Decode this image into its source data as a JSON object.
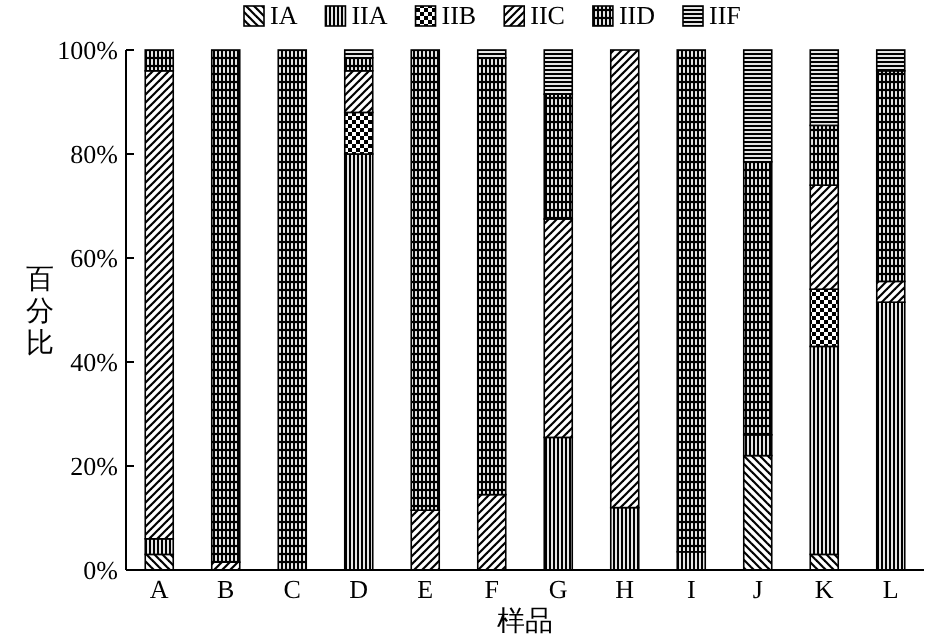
{
  "chart_data": {
    "type": "bar",
    "stacked": true,
    "xlabel": "样品",
    "ylabel": "百分比",
    "categories": [
      "A",
      "B",
      "C",
      "D",
      "E",
      "F",
      "G",
      "H",
      "I",
      "J",
      "K",
      "L"
    ],
    "series": [
      {
        "name": "IA",
        "color": "#000000",
        "values": [
          3,
          0,
          0,
          0,
          0,
          0,
          0,
          0,
          0,
          22,
          3,
          0
        ]
      },
      {
        "name": "IIA",
        "color": "#000000",
        "values": [
          3,
          0,
          0,
          80,
          0,
          0,
          25.5,
          12,
          3.5,
          4,
          40,
          51.5
        ]
      },
      {
        "name": "IIB",
        "color": "#000000",
        "values": [
          0,
          0,
          0,
          8,
          0,
          0,
          0,
          0,
          0,
          0,
          11,
          0
        ]
      },
      {
        "name": "IIC",
        "color": "#000000",
        "values": [
          90,
          1.5,
          0,
          8,
          11.5,
          14.5,
          42,
          88,
          0,
          0,
          20,
          4
        ]
      },
      {
        "name": "IID",
        "color": "#000000",
        "values": [
          4,
          98.5,
          100,
          2.5,
          88.5,
          84,
          24,
          0,
          96.5,
          52.5,
          11.5,
          40.5
        ]
      },
      {
        "name": "IIF",
        "color": "#000000",
        "values": [
          0,
          0,
          0,
          1.5,
          0,
          1.5,
          8.5,
          0,
          0,
          21.5,
          14.5,
          4
        ]
      }
    ],
    "ylim": [
      0,
      100
    ],
    "yticks": [
      {
        "value": 0,
        "label": "0%"
      },
      {
        "value": 20,
        "label": "20%"
      },
      {
        "value": 40,
        "label": "40%"
      },
      {
        "value": 60,
        "label": "60%"
      },
      {
        "value": 80,
        "label": "80%"
      },
      {
        "value": 100,
        "label": "100%"
      }
    ],
    "legend": "top",
    "grid": false
  }
}
